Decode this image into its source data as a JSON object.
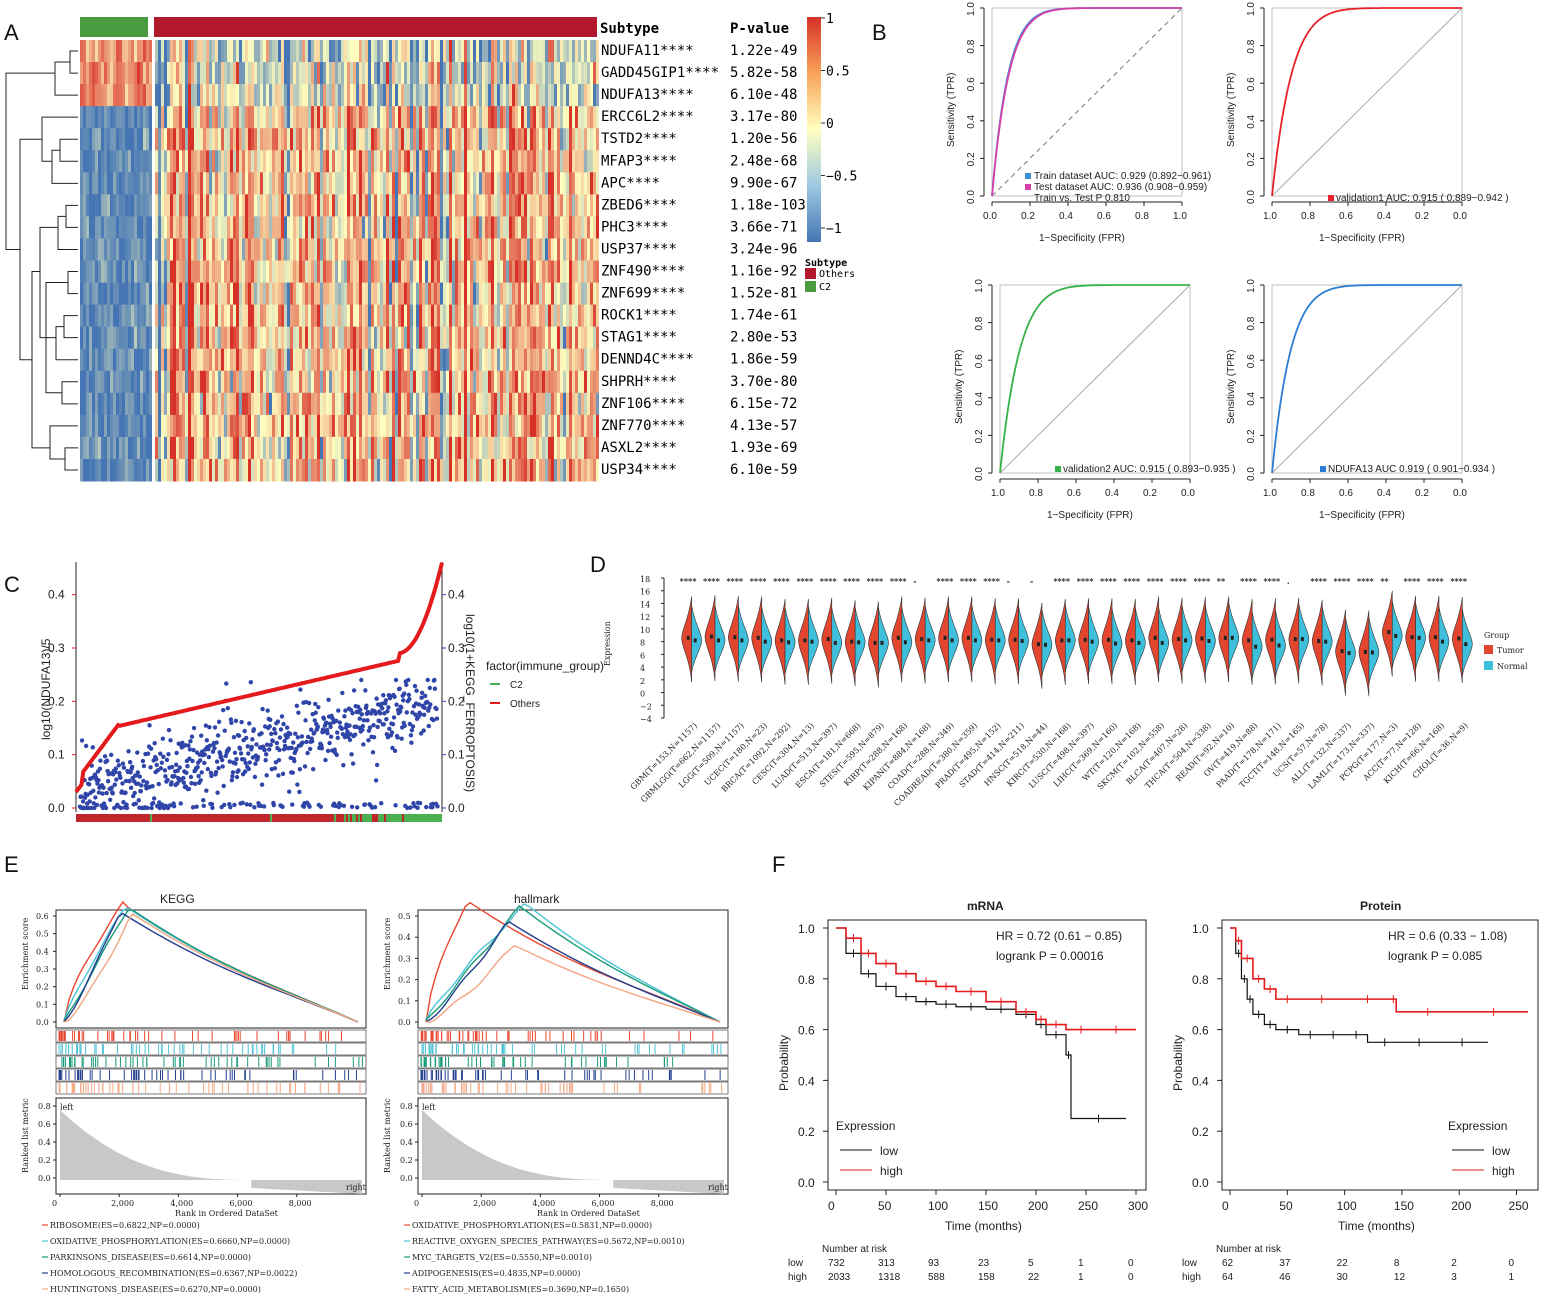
{
  "panels": [
    "A",
    "B",
    "C",
    "D",
    "E",
    "F"
  ],
  "heatmap": {
    "header_subtype": "Subtype",
    "header_pvalue": "P-value",
    "genes": [
      "NDUFA11****",
      "GADD45GIP1****",
      "NDUFA13****",
      "ERCC6L2****",
      "TSTD2****",
      "MFAP3****",
      "APC****",
      "ZBED6****",
      "PHC3****",
      "USP37****",
      "ZNF490****",
      "ZNF699****",
      "ROCK1****",
      "STAG1****",
      "DENND4C****",
      "SHPRH****",
      "ZNF106****",
      "ZNF770****",
      "ASXL2****",
      "USP34****"
    ],
    "pvalues": [
      "1.22e-49",
      "5.82e-58",
      "6.10e-48",
      "3.17e-80",
      "1.20e-56",
      "2.48e-68",
      "9.90e-67",
      "1.18e-103",
      "3.66e-71",
      "3.24e-96",
      "1.16e-92",
      "1.52e-81",
      "1.74e-61",
      "2.80e-53",
      "1.86e-59",
      "3.70e-80",
      "6.15e-72",
      "4.13e-57",
      "1.93e-69",
      "6.10e-59"
    ],
    "colorbar_ticks": [
      "1",
      "0.5",
      "0",
      "−0.5",
      "−1"
    ],
    "legend_title": "Subtype",
    "legend_items": [
      {
        "label": "Others",
        "color": "#b2182b"
      },
      {
        "label": "C2",
        "color": "#4a9a3f"
      }
    ],
    "colors": {
      "high": "#d73027",
      "mid": "#ffffbf",
      "low": "#4575b4"
    }
  },
  "chart_data": [
    {
      "id": "B-train-test",
      "type": "line",
      "xlabel": "1−Specificity (FPR)",
      "ylabel": "Sensitivity (TPR)",
      "xlim": [
        0,
        1
      ],
      "ylim": [
        0,
        1
      ],
      "x_ticks": [
        "0.0",
        "0.2",
        "0.4",
        "0.6",
        "0.8",
        "1.0"
      ],
      "y_ticks": [
        "0.0",
        "0.2",
        "0.4",
        "0.6",
        "0.8",
        "1.0"
      ],
      "series": [
        {
          "name": "Train dataset AUC: 0.929 (0.892−0.961)",
          "color": "#3f8fd6",
          "auc": 0.929
        },
        {
          "name": "Test dataset AUC: 0.936 (0.908−0.959)",
          "color": "#d63fa8",
          "auc": 0.936
        }
      ],
      "annotation": "Train vs. Test P 0.810"
    },
    {
      "id": "B-validation1",
      "type": "line",
      "xlabel": "1−Specificity (FPR)",
      "ylabel": "Sensitivity (TPR)",
      "x_ticks": [
        "1.0",
        "0.8",
        "0.6",
        "0.4",
        "0.2",
        "0.0"
      ],
      "y_ticks": [
        "0.0",
        "0.2",
        "0.4",
        "0.6",
        "0.8",
        "1.0"
      ],
      "series": [
        {
          "name": "validation1 AUC:  0.915  ( 0.889−0.942 )",
          "color": "#e8222a",
          "auc": 0.915
        }
      ]
    },
    {
      "id": "B-validation2",
      "type": "line",
      "xlabel": "1−Specificity (FPR)",
      "ylabel": "Sensitivity (TPR)",
      "x_ticks": [
        "1.0",
        "0.8",
        "0.6",
        "0.4",
        "0.2",
        "0.0"
      ],
      "y_ticks": [
        "0.0",
        "0.2",
        "0.4",
        "0.6",
        "0.8",
        "1.0"
      ],
      "series": [
        {
          "name": "validation2 AUC:  0.915  ( 0.893−0.935 )",
          "color": "#37b24a",
          "auc": 0.915
        }
      ]
    },
    {
      "id": "B-NDUFA13",
      "type": "line",
      "xlabel": "1−Specificity (FPR)",
      "ylabel": "Sensitivity (TPR)",
      "x_ticks": [
        "1.0",
        "0.8",
        "0.6",
        "0.4",
        "0.2",
        "0.0"
      ],
      "y_ticks": [
        "0.0",
        "0.2",
        "0.4",
        "0.6",
        "0.8",
        "1.0"
      ],
      "series": [
        {
          "name": "NDUFA13 AUC 0.919  ( 0.901−0.934 )",
          "color": "#2a7dd0",
          "auc": 0.919
        }
      ]
    },
    {
      "id": "C",
      "type": "scatter",
      "ylabel_left": "log10(NDUFA13)/5",
      "ylabel_right": "log10(1+KEGG_FERROPTOSIS)",
      "left_ticks": [
        "0.0",
        "0.1",
        "0.2",
        "0.3",
        "0.4"
      ],
      "right_ticks": [
        "0.0",
        "0.1",
        "0.2",
        "0.3",
        "0.4"
      ],
      "ylim": [
        0,
        0.45
      ],
      "legend_title": "factor(immune_group)",
      "legend": [
        {
          "name": "C2",
          "color": "#4caf50"
        },
        {
          "name": "Others",
          "color": "#e41a1c"
        }
      ],
      "colors": {
        "line": "#e41a1c",
        "points": "#2f45a8"
      }
    },
    {
      "id": "D",
      "type": "violin",
      "ylabel": "Expression",
      "y_ticks": [
        "18",
        "16",
        "14",
        "12",
        "10",
        "8",
        "6",
        "4",
        "2",
        "0",
        "−2",
        "−4"
      ],
      "ylim": [
        -4,
        18
      ],
      "groups": [
        "GBM(T=153,N=1157)",
        "GBMLGG(T=662,N=1157)",
        "LGG(T=509,N=1157)",
        "UCEC(T=180,N=23)",
        "BRCA(T=1092,N=292)",
        "CESC(T=304,N=13)",
        "LUAD(T=513,N=397)",
        "ESCA(T=181,N=668)",
        "STES(T=595,N=879)",
        "KIRP(T=288,N=168)",
        "KIPAN(T=884,N=168)",
        "COAD(T=288,N=349)",
        "COADREAD(T=380,N=359)",
        "PRAD(T=495,N=152)",
        "STAD(T=414,N=211)",
        "HNSC(T=518,N=44)",
        "KIRC(T=530,N=168)",
        "LUSC(T=498,N=397)",
        "LIHC(T=369,N=160)",
        "WT(T=120,N=168)",
        "SKCM(T=102,N=558)",
        "BLCA(T=407,N=28)",
        "THCA(T=504,N=338)",
        "READ(T=92,N=10)",
        "OV(T=419,N=88)",
        "PAAD(T=178,N=171)",
        "TGCT(T=148,N=165)",
        "UCS(T=57,N=78)",
        "ALL(T=132,N=337)",
        "LAML(T=173,N=337)",
        "PCPG(T=177,N=3)",
        "ACC(T=77,N=128)",
        "KICH(T=66,N=168)",
        "CHOL(T=36,N=9)"
      ],
      "significance": [
        "****",
        "****",
        "****",
        "****",
        "****",
        "****",
        "****",
        "****",
        "****",
        "****",
        "-",
        "****",
        "****",
        "****",
        "-",
        "-",
        "****",
        "****",
        "****",
        "****",
        "****",
        "****",
        "****",
        "**",
        "****",
        "****",
        ".",
        "****",
        "****",
        "****",
        "**",
        "****",
        "****",
        "****"
      ],
      "tumor_median": [
        8.6,
        8.8,
        8.7,
        8.6,
        8.2,
        8.2,
        8.4,
        8.0,
        7.8,
        8.6,
        8.4,
        8.6,
        8.6,
        8.3,
        8.3,
        7.6,
        8.2,
        8.3,
        8.3,
        8.2,
        8.6,
        8.4,
        8.5,
        8.6,
        8.2,
        8.3,
        8.4,
        8.1,
        6.5,
        6.4,
        9.5,
        8.7,
        8.7,
        8.5
      ],
      "normal_median": [
        8.2,
        8.2,
        8.2,
        8.0,
        7.9,
        8.0,
        7.8,
        7.9,
        7.8,
        7.9,
        8.2,
        8.2,
        8.2,
        8.2,
        8.1,
        7.5,
        8.2,
        8.0,
        7.7,
        7.8,
        7.8,
        8.2,
        8.1,
        8.6,
        7.2,
        7.4,
        8.4,
        8.0,
        6.2,
        6.3,
        8.9,
        8.6,
        8.0,
        7.6
      ],
      "legend_title": "Group",
      "legend": [
        {
          "name": "Tumor",
          "color": "#e2462f"
        },
        {
          "name": "Normal",
          "color": "#3ec0dc"
        }
      ]
    },
    {
      "id": "E-KEGG",
      "type": "line",
      "title": "KEGG",
      "ylabel_top": "Enrichment score",
      "ylabel_bottom": "Ranked list metric",
      "xlabel": "Rank in Ordered DataSet",
      "x_ticks": [
        "0",
        "2,000",
        "4,000",
        "6,000",
        "8,000"
      ],
      "y_ticks_top": [
        "0.6",
        "0.5",
        "0.4",
        "0.3",
        "0.2",
        "0.1",
        "0.0"
      ],
      "y_ticks_bottom": [
        "0.8",
        "0.6",
        "0.4",
        "0.2",
        "0.0"
      ],
      "edge_left": "left",
      "edge_right": "right",
      "series": [
        {
          "name": "RIBOSOME(ES=0.6822,NP=0.0000)",
          "color": "#e8452f",
          "es": 0.6822,
          "peak": 0.2
        },
        {
          "name": "OXIDATIVE_PHOSPHORYLATION(ES=0.6660,NP=0.0000)",
          "color": "#4fc3d6",
          "es": 0.666,
          "peak": 0.21
        },
        {
          "name": "PARKINSONS_DISEASE(ES=0.6614,NP=0.0000)",
          "color": "#1a9a7a",
          "es": 0.6614,
          "peak": 0.22
        },
        {
          "name": "HOMOLOGOUS_RECOMBINATION(ES=0.6367,NP=0.0022)",
          "color": "#243f8f",
          "es": 0.6367,
          "peak": 0.19
        },
        {
          "name": "HUNTINGTONS_DISEASE(ES=0.6270,NP=0.0000)",
          "color": "#f4a582",
          "es": 0.627,
          "peak": 0.23
        }
      ]
    },
    {
      "id": "E-hallmark",
      "type": "line",
      "title": "hallmark",
      "ylabel_top": "Enrichment score",
      "ylabel_bottom": "Ranked list metric",
      "xlabel": "Rank in Ordered DataSet",
      "x_ticks": [
        "0",
        "2,000",
        "4,000",
        "6,000",
        "8,000"
      ],
      "y_ticks_top": [
        "0.5",
        "0.4",
        "0.3",
        "0.2",
        "0.1",
        "0.0"
      ],
      "y_ticks_bottom": [
        "0.8",
        "0.6",
        "0.4",
        "0.2",
        "0.0"
      ],
      "edge_left": "left",
      "edge_right": "right",
      "series": [
        {
          "name": "OXIDATIVE_PHOSPHORYLATION(ES=0.5831,NP=0.0000)",
          "color": "#e8452f",
          "es": 0.5831,
          "peak": 0.14
        },
        {
          "name": "REACTIVE_OXYGEN_SPECIES_PATHWAY(ES=0.5672,NP=0.0010)",
          "color": "#4fc3d6",
          "es": 0.5672,
          "peak": 0.34
        },
        {
          "name": "MYC_TARGETS_V2(ES=0.5550,NP=0.0010)",
          "color": "#1a9a7a",
          "es": 0.555,
          "peak": 0.32
        },
        {
          "name": "ADIPOGENESIS(ES=0.4835,NP=0.0000)",
          "color": "#243f8f",
          "es": 0.4835,
          "peak": 0.28
        },
        {
          "name": "FATTY_ACID_METABOLISM(ES=0.3690,NP=0.1650)",
          "color": "#f4a582",
          "es": 0.369,
          "peak": 0.3
        }
      ]
    },
    {
      "id": "F-mRNA",
      "type": "line",
      "title": "mRNA",
      "xlabel": "Time (months)",
      "ylabel": "Probability",
      "xlim": [
        0,
        300
      ],
      "ylim": [
        0,
        1
      ],
      "x_ticks": [
        "0",
        "50",
        "100",
        "150",
        "200",
        "250",
        "300"
      ],
      "y_ticks": [
        "0.0",
        "0.2",
        "0.4",
        "0.6",
        "0.8",
        "1.0"
      ],
      "hr": "HR = 0.72 (0.61 − 0.85)",
      "logrank": "logrank P = 0.00016",
      "legend_title": "Expression",
      "series": [
        {
          "name": "low",
          "color": "#111111",
          "x": [
            0,
            10,
            25,
            40,
            60,
            80,
            100,
            120,
            150,
            180,
            200,
            210,
            230,
            235,
            290
          ],
          "y": [
            1.0,
            0.9,
            0.82,
            0.77,
            0.73,
            0.71,
            0.7,
            0.69,
            0.68,
            0.66,
            0.62,
            0.58,
            0.5,
            0.25,
            0.25
          ]
        },
        {
          "name": "high",
          "color": "#e41a1c",
          "x": [
            0,
            10,
            25,
            40,
            60,
            80,
            100,
            120,
            150,
            180,
            200,
            210,
            230,
            260,
            300
          ],
          "y": [
            1.0,
            0.96,
            0.9,
            0.86,
            0.82,
            0.79,
            0.77,
            0.75,
            0.71,
            0.67,
            0.64,
            0.62,
            0.6,
            0.6,
            0.6
          ]
        }
      ],
      "risk_header": "Number at risk",
      "risk_labels": [
        "low",
        "high"
      ],
      "risk_x": [
        "0",
        "50",
        "100",
        "150",
        "200",
        "250",
        "300"
      ],
      "risk_low": [
        "732",
        "313",
        "93",
        "23",
        "5",
        "1",
        "0"
      ],
      "risk_high": [
        "2033",
        "1318",
        "588",
        "158",
        "22",
        "1",
        "0"
      ]
    },
    {
      "id": "F-Protein",
      "type": "line",
      "title": "Protein",
      "xlabel": "Time (months)",
      "ylabel": "Probability",
      "xlim": [
        0,
        260
      ],
      "ylim": [
        0,
        1
      ],
      "x_ticks": [
        "0",
        "50",
        "100",
        "150",
        "200",
        "250"
      ],
      "y_ticks": [
        "0.0",
        "0.2",
        "0.4",
        "0.6",
        "0.8",
        "1.0"
      ],
      "hr": "HR = 0.6 (0.33 − 1.08)",
      "logrank": "logrank P = 0.085",
      "legend_title": "Expression",
      "series": [
        {
          "name": "low",
          "color": "#111111",
          "x": [
            0,
            5,
            10,
            15,
            20,
            30,
            40,
            60,
            80,
            100,
            120,
            150,
            180,
            225
          ],
          "y": [
            1.0,
            0.9,
            0.8,
            0.72,
            0.66,
            0.62,
            0.6,
            0.58,
            0.58,
            0.58,
            0.55,
            0.55,
            0.55,
            0.55
          ]
        },
        {
          "name": "high",
          "color": "#e41a1c",
          "x": [
            0,
            5,
            10,
            20,
            30,
            40,
            60,
            100,
            140,
            145,
            200,
            260
          ],
          "y": [
            1.0,
            0.95,
            0.88,
            0.8,
            0.76,
            0.72,
            0.72,
            0.72,
            0.72,
            0.67,
            0.67,
            0.67
          ]
        }
      ],
      "risk_header": "Number at risk",
      "risk_labels": [
        "low",
        "high"
      ],
      "risk_x": [
        "0",
        "50",
        "100",
        "150",
        "200",
        "250"
      ],
      "risk_low": [
        "62",
        "37",
        "22",
        "8",
        "2",
        "0"
      ],
      "risk_high": [
        "64",
        "46",
        "30",
        "12",
        "3",
        "1"
      ]
    }
  ]
}
